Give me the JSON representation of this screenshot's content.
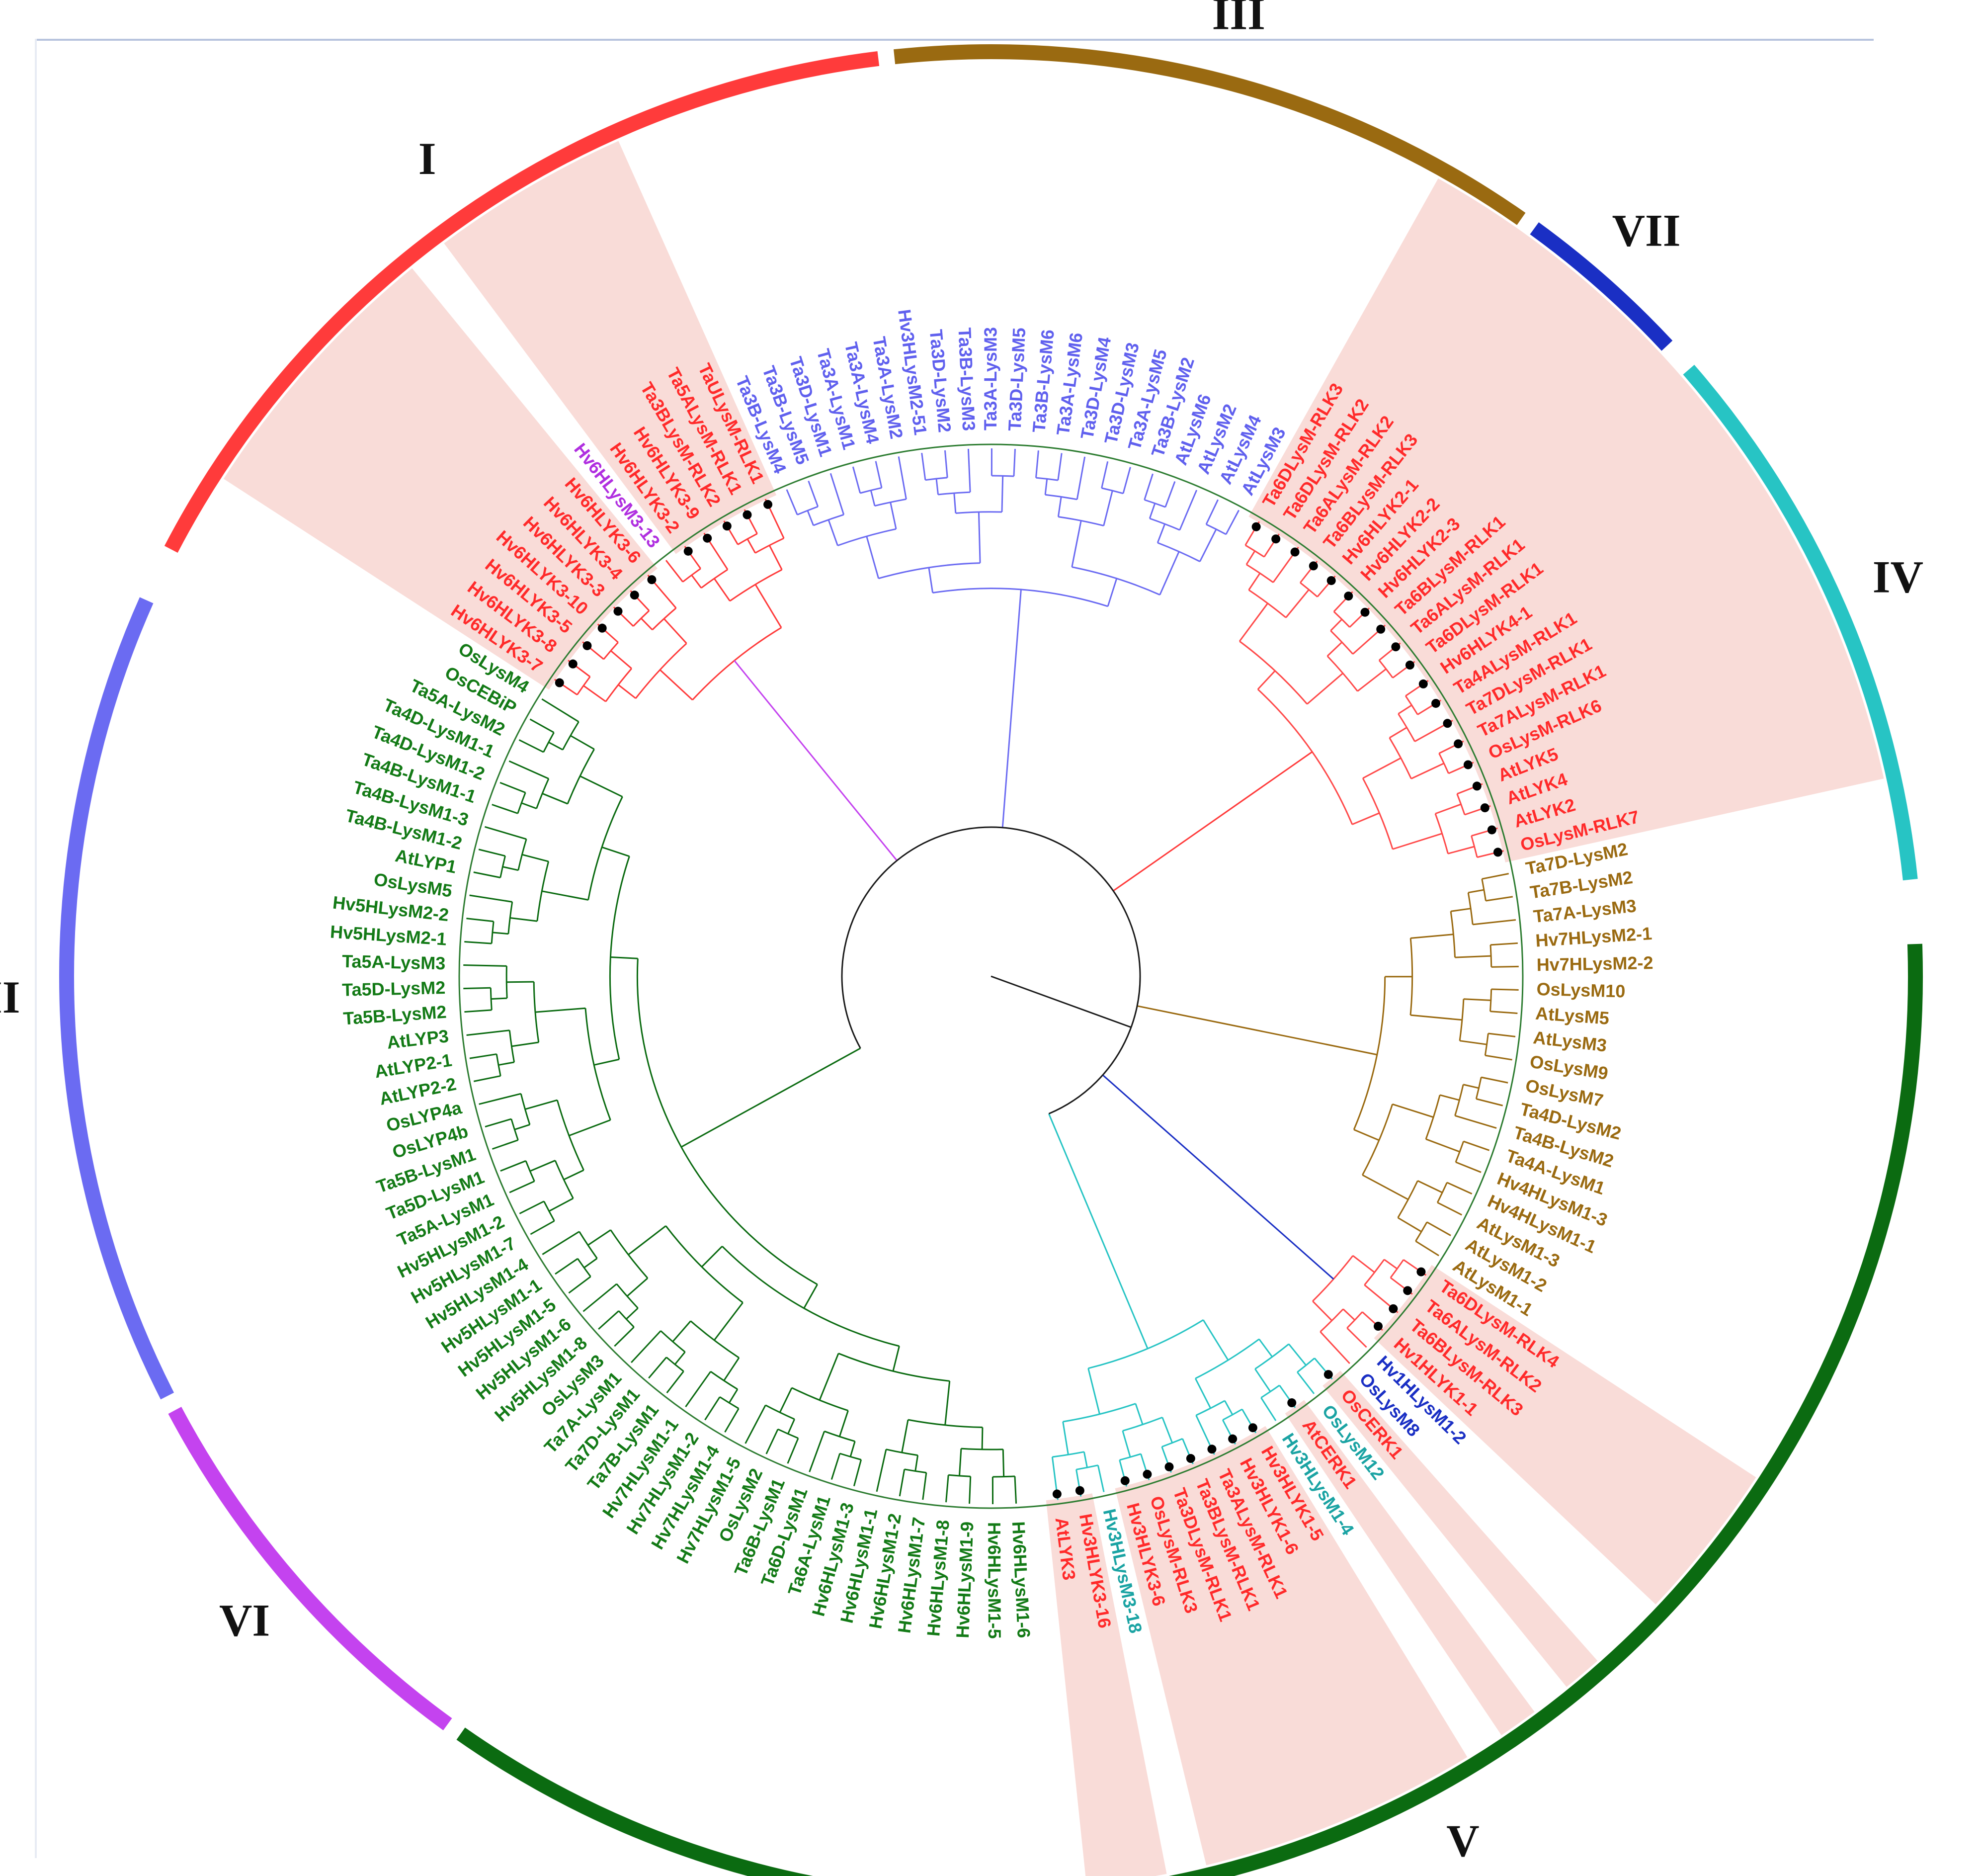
{
  "figure": {
    "type": "circular phylogenetic tree",
    "root_branch_color": "#1a1a1a",
    "ring_guide_color": "#2e7d32"
  },
  "clades": [
    {
      "id": "I",
      "label": "I",
      "color": "#ff3b3b",
      "text_color": "#ff2a2a",
      "arc": [
        -62.5,
        -7
      ]
    },
    {
      "id": "III",
      "label": "III",
      "color": "#9a6a11",
      "text_color": "#9a6a11",
      "arc": [
        -6,
        35
      ]
    },
    {
      "id": "VII",
      "label": "VII",
      "color": "#1a2fc4",
      "text_color": "#1a2fc4",
      "arc": [
        36,
        47
      ]
    },
    {
      "id": "IV",
      "label": "IV",
      "color": "#27c4c4",
      "text_color": "#1aa3a3",
      "arc": [
        49,
        84
      ]
    },
    {
      "id": "V",
      "label": "V",
      "color": "#0b6b11",
      "text_color": "#137a16",
      "arc": [
        88,
        215
      ]
    },
    {
      "id": "VI",
      "label": "VI",
      "color": "#c443ef",
      "text_color": "#b02fe0",
      "arc": [
        216,
        242
      ]
    },
    {
      "id": "II",
      "label": "II",
      "color": "#6b6bf2",
      "text_color": "#6060ee",
      "arc": [
        243,
        294
      ]
    }
  ],
  "highlight_color": "#f9dcd8",
  "leaves": [
    {
      "name": "Hv6HLysM1-6",
      "clade": "V",
      "color": "#137a16"
    },
    {
      "name": "Hv6HLysM1-5",
      "clade": "V",
      "color": "#137a16"
    },
    {
      "name": "Hv6HLysM1-9",
      "clade": "V",
      "color": "#137a16"
    },
    {
      "name": "Hv6HLysM1-8",
      "clade": "V",
      "color": "#137a16"
    },
    {
      "name": "Hv6HLysM1-7",
      "clade": "V",
      "color": "#137a16"
    },
    {
      "name": "Hv6HLysM1-2",
      "clade": "V",
      "color": "#137a16"
    },
    {
      "name": "Hv6HLysM1-1",
      "clade": "V",
      "color": "#137a16"
    },
    {
      "name": "Hv6HLysM1-3",
      "clade": "V",
      "color": "#137a16"
    },
    {
      "name": "Ta6A-LysM1",
      "clade": "V",
      "color": "#137a16"
    },
    {
      "name": "Ta6D-LysM1",
      "clade": "V",
      "color": "#137a16"
    },
    {
      "name": "Ta6B-LysM1",
      "clade": "V",
      "color": "#137a16"
    },
    {
      "name": "OsLysM2",
      "clade": "V",
      "color": "#137a16"
    },
    {
      "name": "Hv7HLysM1-5",
      "clade": "V",
      "color": "#137a16"
    },
    {
      "name": "Hv7HLysM1-4",
      "clade": "V",
      "color": "#137a16"
    },
    {
      "name": "Hv7HLysM1-2",
      "clade": "V",
      "color": "#137a16"
    },
    {
      "name": "Hv7HLysM1-1",
      "clade": "V",
      "color": "#137a16"
    },
    {
      "name": "Ta7B-LysM1",
      "clade": "V",
      "color": "#137a16"
    },
    {
      "name": "Ta7D-LysM1",
      "clade": "V",
      "color": "#137a16"
    },
    {
      "name": "Ta7A-LysM1",
      "clade": "V",
      "color": "#137a16"
    },
    {
      "name": "OsLysM3",
      "clade": "V",
      "color": "#137a16"
    },
    {
      "name": "Hv5HLysM1-8",
      "clade": "V",
      "color": "#137a16"
    },
    {
      "name": "Hv5HLysM1-6",
      "clade": "V",
      "color": "#137a16"
    },
    {
      "name": "Hv5HLysM1-5",
      "clade": "V",
      "color": "#137a16"
    },
    {
      "name": "Hv5HLysM1-1",
      "clade": "V",
      "color": "#137a16"
    },
    {
      "name": "Hv5HLysM1-4",
      "clade": "V",
      "color": "#137a16"
    },
    {
      "name": "Hv5HLysM1-7",
      "clade": "V",
      "color": "#137a16"
    },
    {
      "name": "Hv5HLysM1-2",
      "clade": "V",
      "color": "#137a16"
    },
    {
      "name": "Ta5A-LysM1",
      "clade": "V",
      "color": "#137a16"
    },
    {
      "name": "Ta5D-LysM1",
      "clade": "V",
      "color": "#137a16"
    },
    {
      "name": "Ta5B-LysM1",
      "clade": "V",
      "color": "#137a16"
    },
    {
      "name": "OsLYP4b",
      "clade": "V",
      "color": "#137a16"
    },
    {
      "name": "OsLYP4a",
      "clade": "V",
      "color": "#137a16"
    },
    {
      "name": "AtLYP2-2",
      "clade": "V",
      "color": "#137a16"
    },
    {
      "name": "AtLYP2-1",
      "clade": "V",
      "color": "#137a16"
    },
    {
      "name": "AtLYP3",
      "clade": "V",
      "color": "#137a16"
    },
    {
      "name": "Ta5B-LysM2",
      "clade": "V",
      "color": "#137a16"
    },
    {
      "name": "Ta5D-LysM2",
      "clade": "V",
      "color": "#137a16"
    },
    {
      "name": "Ta5A-LysM3",
      "clade": "V",
      "color": "#137a16"
    },
    {
      "name": "Hv5HLysM2-1",
      "clade": "V",
      "color": "#137a16"
    },
    {
      "name": "Hv5HLysM2-2",
      "clade": "V",
      "color": "#137a16"
    },
    {
      "name": "OsLysM5",
      "clade": "V",
      "color": "#137a16"
    },
    {
      "name": "AtLYP1",
      "clade": "V",
      "color": "#137a16"
    },
    {
      "name": "Ta4B-LysM1-2",
      "clade": "V",
      "color": "#137a16"
    },
    {
      "name": "Ta4B-LysM1-3",
      "clade": "V",
      "color": "#137a16"
    },
    {
      "name": "Ta4B-LysM1-1",
      "clade": "V",
      "color": "#137a16"
    },
    {
      "name": "Ta4D-LysM1-2",
      "clade": "V",
      "color": "#137a16"
    },
    {
      "name": "Ta4D-LysM1-1",
      "clade": "V",
      "color": "#137a16"
    },
    {
      "name": "Ta5A-LysM2",
      "clade": "V",
      "color": "#137a16"
    },
    {
      "name": "OsCEBiP",
      "clade": "V",
      "color": "#137a16"
    },
    {
      "name": "OsLysM4",
      "clade": "V",
      "color": "#137a16"
    },
    {
      "name": "Hv6HLYK3-7",
      "clade": "VI",
      "color": "#ff2a2a"
    },
    {
      "name": "Hv6HLYK3-8",
      "clade": "VI",
      "color": "#ff2a2a"
    },
    {
      "name": "Hv6HLYK3-5",
      "clade": "VI",
      "color": "#ff2a2a"
    },
    {
      "name": "Hv6HLYK3-10",
      "clade": "VI",
      "color": "#ff2a2a"
    },
    {
      "name": "Hv6HLYK3-3",
      "clade": "VI",
      "color": "#ff2a2a"
    },
    {
      "name": "Hv6HLYK3-4",
      "clade": "VI",
      "color": "#ff2a2a"
    },
    {
      "name": "Hv6HLYK3-6",
      "clade": "VI",
      "color": "#ff2a2a"
    },
    {
      "name": "Hv6HLysM3-13",
      "clade": "VI",
      "color": "#b02fe0"
    },
    {
      "name": "Hv6HLYK3-2",
      "clade": "VI",
      "color": "#ff2a2a"
    },
    {
      "name": "Hv6HLYK3-9",
      "clade": "VI",
      "color": "#ff2a2a"
    },
    {
      "name": "Ta3BLysM-RLK2",
      "clade": "VI",
      "color": "#ff2a2a"
    },
    {
      "name": "Ta5ALysM-RLK1",
      "clade": "VI",
      "color": "#ff2a2a"
    },
    {
      "name": "TaULysM-RLK1",
      "clade": "VI",
      "color": "#ff2a2a"
    },
    {
      "name": "Ta3B-LysM4",
      "clade": "II",
      "color": "#6060ee"
    },
    {
      "name": "Ta3B-LysM5",
      "clade": "II",
      "color": "#6060ee"
    },
    {
      "name": "Ta3D-LysM1",
      "clade": "II",
      "color": "#6060ee"
    },
    {
      "name": "Ta3A-LysM1",
      "clade": "II",
      "color": "#6060ee"
    },
    {
      "name": "Ta3A-LysM4",
      "clade": "II",
      "color": "#6060ee"
    },
    {
      "name": "Ta3A-LysM2",
      "clade": "II",
      "color": "#6060ee"
    },
    {
      "name": "Hv3HLysM2-51",
      "clade": "II",
      "color": "#6060ee"
    },
    {
      "name": "Ta3D-LysM2",
      "clade": "II",
      "color": "#6060ee"
    },
    {
      "name": "Ta3B-LysM3",
      "clade": "II",
      "color": "#6060ee"
    },
    {
      "name": "Ta3A-LysM3",
      "clade": "II",
      "color": "#6060ee"
    },
    {
      "name": "Ta3D-LysM5",
      "clade": "II",
      "color": "#6060ee"
    },
    {
      "name": "Ta3B-LysM6",
      "clade": "II",
      "color": "#6060ee"
    },
    {
      "name": "Ta3A-LysM6",
      "clade": "II",
      "color": "#6060ee"
    },
    {
      "name": "Ta3D-LysM4",
      "clade": "II",
      "color": "#6060ee"
    },
    {
      "name": "Ta3D-LysM3",
      "clade": "II",
      "color": "#6060ee"
    },
    {
      "name": "Ta3A-LysM5",
      "clade": "II",
      "color": "#6060ee"
    },
    {
      "name": "Ta3B-LysM2",
      "clade": "II",
      "color": "#6060ee"
    },
    {
      "name": "AtLysM6",
      "clade": "II",
      "color": "#6060ee"
    },
    {
      "name": "AtLysM2",
      "clade": "II",
      "color": "#6060ee"
    },
    {
      "name": "AtLysM4",
      "clade": "II",
      "color": "#6060ee"
    },
    {
      "name": "AtLysM3",
      "clade": "II",
      "color": "#6060ee"
    },
    {
      "name": "Ta6DLysM-RLK3",
      "clade": "I",
      "color": "#ff2a2a"
    },
    {
      "name": "Ta6DLysM-RLK2",
      "clade": "I",
      "color": "#ff2a2a"
    },
    {
      "name": "Ta6ALysM-RLK2",
      "clade": "I",
      "color": "#ff2a2a"
    },
    {
      "name": "Ta6BLysM-RLK3",
      "clade": "I",
      "color": "#ff2a2a"
    },
    {
      "name": "Hv6HLYK2-1",
      "clade": "I",
      "color": "#ff2a2a"
    },
    {
      "name": "Hv6HLYK2-2",
      "clade": "I",
      "color": "#ff2a2a"
    },
    {
      "name": "Hv6HLYK2-3",
      "clade": "I",
      "color": "#ff2a2a"
    },
    {
      "name": "Ta6BLysM-RLK1",
      "clade": "I",
      "color": "#ff2a2a"
    },
    {
      "name": "Ta6ALysM-RLK1",
      "clade": "I",
      "color": "#ff2a2a"
    },
    {
      "name": "Ta6DLysM-RLK1",
      "clade": "I",
      "color": "#ff2a2a"
    },
    {
      "name": "Hv6HLYK4-1",
      "clade": "I",
      "color": "#ff2a2a"
    },
    {
      "name": "Ta4ALysM-RLK1",
      "clade": "I",
      "color": "#ff2a2a"
    },
    {
      "name": "Ta7DLysM-RLK1",
      "clade": "I",
      "color": "#ff2a2a"
    },
    {
      "name": "Ta7ALysM-RLK1",
      "clade": "I",
      "color": "#ff2a2a"
    },
    {
      "name": "OsLysM-RLK6",
      "clade": "I",
      "color": "#ff2a2a"
    },
    {
      "name": "AtLYK5",
      "clade": "I",
      "color": "#ff2a2a"
    },
    {
      "name": "AtLYK4",
      "clade": "I",
      "color": "#ff2a2a"
    },
    {
      "name": "AtLYK2",
      "clade": "I",
      "color": "#ff2a2a"
    },
    {
      "name": "OsLysM-RLK7",
      "clade": "I",
      "color": "#ff2a2a"
    },
    {
      "name": "Ta7D-LysM2",
      "clade": "III",
      "color": "#9a6a11"
    },
    {
      "name": "Ta7B-LysM2",
      "clade": "III",
      "color": "#9a6a11"
    },
    {
      "name": "Ta7A-LysM3",
      "clade": "III",
      "color": "#9a6a11"
    },
    {
      "name": "Hv7HLysM2-1",
      "clade": "III",
      "color": "#9a6a11"
    },
    {
      "name": "Hv7HLysM2-2",
      "clade": "III",
      "color": "#9a6a11"
    },
    {
      "name": "OsLysM10",
      "clade": "III",
      "color": "#9a6a11"
    },
    {
      "name": "AtLysM5",
      "clade": "III",
      "color": "#9a6a11"
    },
    {
      "name": "AtLysM3",
      "clade": "III",
      "color": "#9a6a11"
    },
    {
      "name": "OsLysM9",
      "clade": "III",
      "color": "#9a6a11"
    },
    {
      "name": "OsLysM7",
      "clade": "III",
      "color": "#9a6a11"
    },
    {
      "name": "Ta4D-LysM2",
      "clade": "III",
      "color": "#9a6a11"
    },
    {
      "name": "Ta4B-LysM2",
      "clade": "III",
      "color": "#9a6a11"
    },
    {
      "name": "Ta4A-LysM1",
      "clade": "III",
      "color": "#9a6a11"
    },
    {
      "name": "Hv4HLysM1-3",
      "clade": "III",
      "color": "#9a6a11"
    },
    {
      "name": "Hv4HLysM1-1",
      "clade": "III",
      "color": "#9a6a11"
    },
    {
      "name": "AtLysM1-3",
      "clade": "III",
      "color": "#9a6a11"
    },
    {
      "name": "AtLysM1-2",
      "clade": "III",
      "color": "#9a6a11"
    },
    {
      "name": "AtLysM1-1",
      "clade": "III",
      "color": "#9a6a11"
    },
    {
      "name": "Ta6DLysM-RLK4",
      "clade": "VII",
      "color": "#ff2a2a"
    },
    {
      "name": "Ta6ALysM-RLK2",
      "clade": "VII",
      "color": "#ff2a2a"
    },
    {
      "name": "Ta6BLysM-RLK3",
      "clade": "VII",
      "color": "#ff2a2a"
    },
    {
      "name": "Hv1HLYK1-1",
      "clade": "VII",
      "color": "#ff2a2a"
    },
    {
      "name": "Hv1HLysM1-2",
      "clade": "VII",
      "color": "#1a2fc4"
    },
    {
      "name": "OsLysM8",
      "clade": "VII",
      "color": "#1a2fc4"
    },
    {
      "name": "OsCERK1",
      "clade": "IV",
      "color": "#ff2a2a"
    },
    {
      "name": "OsLysM12",
      "clade": "IV",
      "color": "#1aa3a3"
    },
    {
      "name": "AtCERK1",
      "clade": "IV",
      "color": "#ff2a2a"
    },
    {
      "name": "Hv3HLysM1-4",
      "clade": "IV",
      "color": "#1aa3a3"
    },
    {
      "name": "Hv3HLYK1-5",
      "clade": "IV",
      "color": "#ff2a2a"
    },
    {
      "name": "Hv3HLYK1-6",
      "clade": "IV",
      "color": "#ff2a2a"
    },
    {
      "name": "Ta3ALysM-RLK1",
      "clade": "IV",
      "color": "#ff2a2a"
    },
    {
      "name": "Ta3BLysM-RLK1",
      "clade": "IV",
      "color": "#ff2a2a"
    },
    {
      "name": "Ta3DLysM-RLK1",
      "clade": "IV",
      "color": "#ff2a2a"
    },
    {
      "name": "OsLysM-RLK3",
      "clade": "IV",
      "color": "#ff2a2a"
    },
    {
      "name": "Hv3HLYK3-6",
      "clade": "IV",
      "color": "#ff2a2a"
    },
    {
      "name": "Hv3HLysM3-18",
      "clade": "IV",
      "color": "#1aa3a3"
    },
    {
      "name": "Hv3HLYK3-16",
      "clade": "IV",
      "color": "#ff2a2a"
    },
    {
      "name": "AtLYK3",
      "clade": "IV",
      "color": "#ff2a2a"
    }
  ]
}
